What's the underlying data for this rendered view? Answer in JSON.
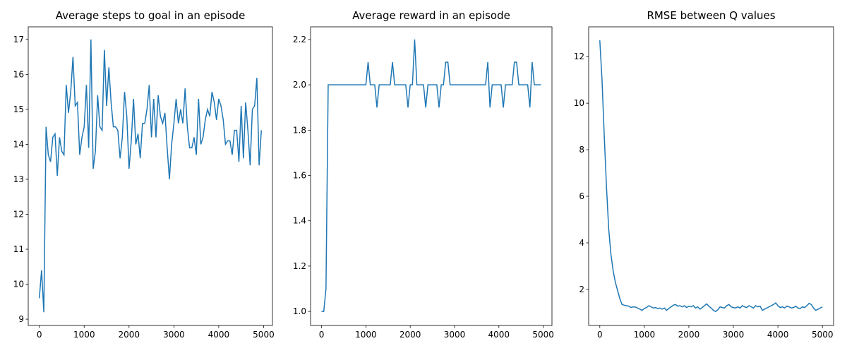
{
  "chart_data": [
    {
      "type": "line",
      "title": "Average steps to goal in an episode",
      "color": "#1f77b4",
      "x": [
        0,
        50,
        100,
        150,
        200,
        250,
        300,
        350,
        400,
        450,
        500,
        550,
        600,
        650,
        700,
        750,
        800,
        850,
        900,
        950,
        1000,
        1050,
        1100,
        1150,
        1200,
        1250,
        1300,
        1350,
        1400,
        1450,
        1500,
        1550,
        1600,
        1650,
        1700,
        1750,
        1800,
        1850,
        1900,
        1950,
        2000,
        2050,
        2100,
        2150,
        2200,
        2250,
        2300,
        2350,
        2400,
        2450,
        2500,
        2550,
        2600,
        2650,
        2700,
        2750,
        2800,
        2850,
        2900,
        2950,
        3000,
        3050,
        3100,
        3150,
        3200,
        3250,
        3300,
        3350,
        3400,
        3450,
        3500,
        3550,
        3600,
        3650,
        3700,
        3750,
        3800,
        3850,
        3900,
        3950,
        4000,
        4050,
        4100,
        4150,
        4200,
        4250,
        4300,
        4350,
        4400,
        4450,
        4500,
        4550,
        4600,
        4650,
        4700,
        4750,
        4800,
        4850,
        4900,
        4950
      ],
      "values": [
        9.6,
        10.4,
        9.2,
        14.5,
        13.7,
        13.5,
        14.2,
        14.3,
        13.1,
        14.2,
        13.8,
        13.7,
        15.7,
        14.9,
        15.5,
        16.5,
        15.1,
        15.2,
        13.7,
        14.2,
        14.5,
        15.7,
        13.9,
        17.0,
        13.3,
        13.8,
        15.4,
        14.5,
        14.4,
        16.7,
        15.1,
        16.2,
        15.2,
        14.5,
        14.5,
        14.4,
        13.6,
        14.2,
        15.5,
        14.8,
        13.3,
        14.1,
        15.3,
        14.0,
        14.3,
        13.6,
        14.6,
        14.6,
        15.0,
        15.7,
        14.2,
        15.3,
        14.2,
        15.4,
        14.8,
        14.6,
        14.9,
        13.9,
        13.0,
        14.0,
        14.6,
        15.3,
        14.6,
        15.0,
        14.6,
        15.6,
        14.5,
        13.9,
        13.9,
        14.2,
        13.7,
        15.3,
        14.0,
        14.2,
        14.7,
        15.0,
        14.8,
        15.5,
        15.2,
        14.7,
        15.3,
        15.1,
        14.7,
        14.0,
        14.1,
        14.1,
        13.7,
        14.4,
        14.4,
        13.5,
        15.1,
        13.6,
        15.2,
        14.4,
        13.4,
        15.0,
        15.1,
        15.9,
        13.4,
        14.4
      ],
      "xlim": [
        -247.5,
        5197.5
      ],
      "xticks": [
        0,
        1000,
        2000,
        3000,
        4000,
        5000
      ],
      "ylim": [
        8.82,
        17.36
      ],
      "yticks": [
        9,
        10,
        11,
        12,
        13,
        14,
        15,
        16,
        17
      ]
    },
    {
      "type": "line",
      "title": "Average reward in an episode",
      "color": "#1f77b4",
      "x": [
        0,
        50,
        100,
        150,
        200,
        250,
        300,
        350,
        400,
        450,
        500,
        550,
        600,
        650,
        700,
        750,
        800,
        850,
        900,
        950,
        1000,
        1050,
        1100,
        1150,
        1200,
        1250,
        1300,
        1350,
        1400,
        1450,
        1500,
        1550,
        1600,
        1650,
        1700,
        1750,
        1800,
        1850,
        1900,
        1950,
        2000,
        2050,
        2100,
        2150,
        2200,
        2250,
        2300,
        2350,
        2400,
        2450,
        2500,
        2550,
        2600,
        2650,
        2700,
        2750,
        2800,
        2850,
        2900,
        2950,
        3000,
        3050,
        3100,
        3150,
        3200,
        3250,
        3300,
        3350,
        3400,
        3450,
        3500,
        3550,
        3600,
        3650,
        3700,
        3750,
        3800,
        3850,
        3900,
        3950,
        4000,
        4050,
        4100,
        4150,
        4200,
        4250,
        4300,
        4350,
        4400,
        4450,
        4500,
        4550,
        4600,
        4650,
        4700,
        4750,
        4800,
        4850,
        4900,
        4950
      ],
      "values": [
        1.0,
        1.0,
        1.1,
        2.0,
        2.0,
        2.0,
        2.0,
        2.0,
        2.0,
        2.0,
        2.0,
        2.0,
        2.0,
        2.0,
        2.0,
        2.0,
        2.0,
        2.0,
        2.0,
        2.0,
        2.0,
        2.1,
        2.0,
        2.0,
        2.0,
        1.9,
        2.0,
        2.0,
        2.0,
        2.0,
        2.0,
        2.0,
        2.1,
        2.0,
        2.0,
        2.0,
        2.0,
        2.0,
        2.0,
        1.9,
        2.0,
        2.0,
        2.2,
        2.0,
        2.0,
        2.0,
        2.0,
        1.9,
        2.0,
        2.0,
        2.0,
        2.0,
        2.0,
        1.9,
        2.0,
        2.0,
        2.1,
        2.1,
        2.0,
        2.0,
        2.0,
        2.0,
        2.0,
        2.0,
        2.0,
        2.0,
        2.0,
        2.0,
        2.0,
        2.0,
        2.0,
        2.0,
        2.0,
        2.0,
        2.0,
        2.1,
        1.9,
        2.0,
        2.0,
        2.0,
        2.0,
        2.0,
        1.9,
        2.0,
        2.0,
        2.0,
        2.0,
        2.1,
        2.1,
        2.0,
        2.0,
        2.0,
        2.0,
        2.0,
        1.9,
        2.1,
        2.0,
        2.0,
        2.0,
        2.0
      ],
      "xlim": [
        -247.5,
        5197.5
      ],
      "xticks": [
        0,
        1000,
        2000,
        3000,
        4000,
        5000
      ],
      "ylim": [
        0.938,
        2.256
      ],
      "yticks": [
        {
          "value": 1,
          "label": "1.0"
        },
        1.2,
        1.4,
        1.6,
        1.8,
        {
          "value": 2,
          "label": "2.0"
        },
        2.2
      ]
    },
    {
      "type": "line",
      "title": "RMSE between Q values",
      "color": "#1f77b4",
      "x": [
        0,
        50,
        100,
        150,
        200,
        250,
        300,
        350,
        400,
        450,
        500,
        550,
        600,
        650,
        700,
        750,
        800,
        850,
        900,
        950,
        1000,
        1050,
        1100,
        1150,
        1200,
        1250,
        1300,
        1350,
        1400,
        1450,
        1500,
        1550,
        1600,
        1650,
        1700,
        1750,
        1800,
        1850,
        1900,
        1950,
        2000,
        2050,
        2100,
        2150,
        2200,
        2250,
        2300,
        2350,
        2400,
        2450,
        2500,
        2550,
        2600,
        2650,
        2700,
        2750,
        2800,
        2850,
        2900,
        2950,
        3000,
        3050,
        3100,
        3150,
        3200,
        3250,
        3300,
        3350,
        3400,
        3450,
        3500,
        3550,
        3600,
        3650,
        3700,
        3750,
        3800,
        3850,
        3900,
        3950,
        4000,
        4050,
        4100,
        4150,
        4200,
        4250,
        4300,
        4350,
        4400,
        4450,
        4500,
        4550,
        4600,
        4650,
        4700,
        4750,
        4800,
        4850,
        4900,
        4950,
        5000
      ],
      "values": [
        12.7,
        11.0,
        8.6,
        6.4,
        4.6,
        3.5,
        2.8,
        2.3,
        1.95,
        1.6,
        1.35,
        1.32,
        1.3,
        1.28,
        1.22,
        1.25,
        1.24,
        1.2,
        1.15,
        1.1,
        1.18,
        1.22,
        1.3,
        1.25,
        1.2,
        1.22,
        1.18,
        1.2,
        1.15,
        1.2,
        1.1,
        1.18,
        1.25,
        1.32,
        1.35,
        1.28,
        1.3,
        1.25,
        1.3,
        1.22,
        1.28,
        1.25,
        1.3,
        1.2,
        1.25,
        1.15,
        1.22,
        1.3,
        1.38,
        1.28,
        1.2,
        1.1,
        1.05,
        1.12,
        1.25,
        1.22,
        1.2,
        1.3,
        1.35,
        1.25,
        1.22,
        1.2,
        1.25,
        1.2,
        1.3,
        1.25,
        1.22,
        1.3,
        1.25,
        1.2,
        1.3,
        1.25,
        1.28,
        1.1,
        1.15,
        1.2,
        1.25,
        1.3,
        1.35,
        1.42,
        1.3,
        1.22,
        1.25,
        1.2,
        1.28,
        1.25,
        1.2,
        1.22,
        1.28,
        1.2,
        1.18,
        1.25,
        1.22,
        1.3,
        1.4,
        1.35,
        1.2,
        1.1,
        1.15,
        1.2,
        1.25
      ],
      "xlim": [
        -250,
        5250
      ],
      "xticks": [
        0,
        1000,
        2000,
        3000,
        4000,
        5000
      ],
      "ylim": [
        0.45,
        13.28
      ],
      "yticks": [
        2,
        4,
        6,
        8,
        10,
        12
      ]
    }
  ]
}
